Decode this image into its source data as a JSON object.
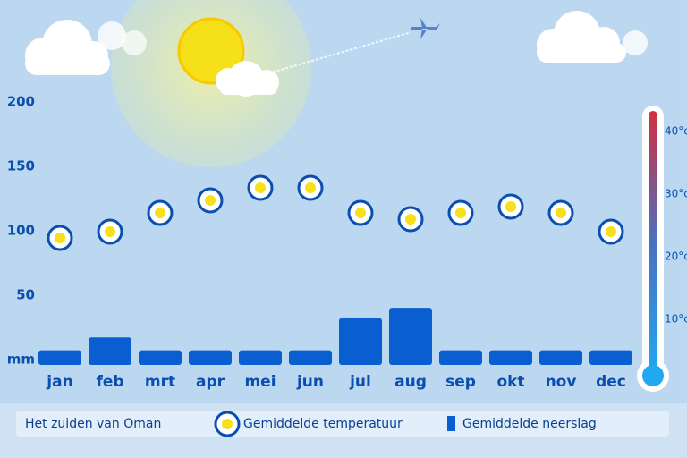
{
  "chart_data": {
    "type": "bar",
    "title": "Het zuiden van Oman",
    "categories": [
      "jan",
      "feb",
      "mrt",
      "apr",
      "mei",
      "jun",
      "jul",
      "aug",
      "sep",
      "okt",
      "nov",
      "dec"
    ],
    "series": [
      {
        "name": "Gemiddelde neerslag",
        "color": "#0a5fd0",
        "values": [
          10,
          20,
          10,
          10,
          10,
          10,
          35,
          43,
          10,
          10,
          10,
          10
        ]
      },
      {
        "name": "Gemiddelde temperatuur",
        "color": "#f5e01a",
        "axis": "y2",
        "values": [
          23,
          24,
          27,
          29,
          31,
          31,
          27,
          26,
          27,
          28,
          27,
          24
        ]
      }
    ],
    "ylim": [
      0,
      200
    ],
    "yticks": [
      {
        "value": 0,
        "label": "mm"
      },
      50,
      100,
      150,
      200
    ],
    "y2lim": [
      0,
      40
    ],
    "y2ticks": [
      {
        "value": 10,
        "label": "10°c"
      },
      {
        "value": 20,
        "label": "20°c"
      },
      {
        "value": 30,
        "label": "30°c"
      },
      {
        "value": 40,
        "label": "40°c"
      }
    ],
    "grid": false
  }
}
